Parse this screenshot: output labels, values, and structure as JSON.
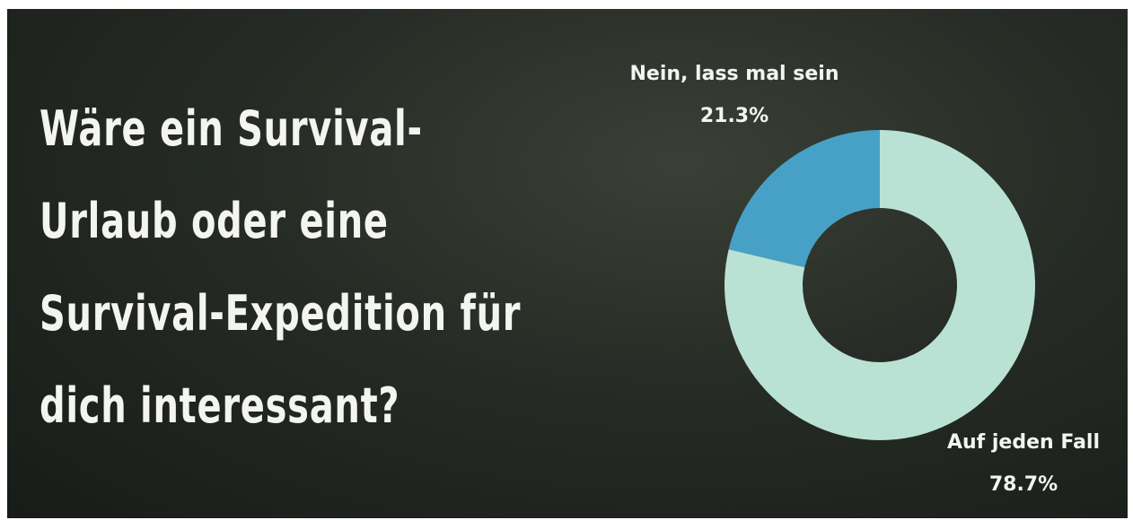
{
  "chart_data": {
    "type": "pie",
    "donut": true,
    "title": "Wäre ein Survival-\nUrlaub oder eine\nSurvival-Expedition für\ndich interessant?",
    "categories": [
      "Nein, lass mal sein",
      "Auf jeden Fall"
    ],
    "values": [
      21.3,
      78.7
    ],
    "value_labels": [
      "21.3%",
      "78.7%"
    ],
    "colors": [
      "#47a1c6",
      "#b9e2d5"
    ]
  }
}
